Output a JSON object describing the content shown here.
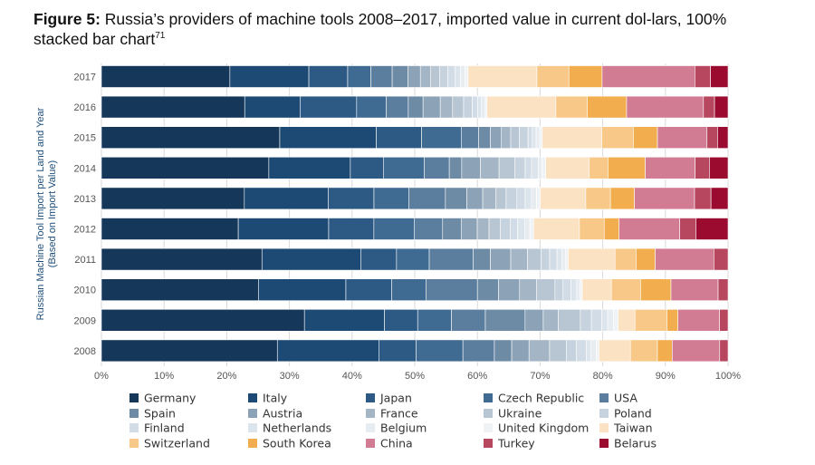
{
  "caption": {
    "figure_label": "Figure 5:",
    "text": " Russia’s providers of machine tools 2008–2017, imported value in current dol-lars, 100% stacked bar chart",
    "footnote": "71"
  },
  "chart_data": {
    "type": "bar",
    "orientation": "horizontal",
    "stacked": "100%",
    "title": "Russia’s providers of machine tools 2008–2017, imported value in current dollars, 100% stacked bar chart",
    "ylabel_line1": "Russian Machine Tool Import per Land and Year",
    "ylabel_line2": "(Based on Import Value)",
    "xlim": [
      0,
      100
    ],
    "x_ticks": [
      "0%",
      "10%",
      "20%",
      "30%",
      "40%",
      "50%",
      "60%",
      "70%",
      "80%",
      "90%",
      "100%"
    ],
    "categories": [
      "2017",
      "2016",
      "2015",
      "2014",
      "2013",
      "2012",
      "2011",
      "2010",
      "2009",
      "2008"
    ],
    "series": [
      {
        "name": "Germany",
        "color": "#15375a",
        "values": [
          20.5,
          23.3,
          28.8,
          26.9,
          22.6,
          22.1,
          26.0,
          25.3,
          31.2,
          27.4
        ]
      },
      {
        "name": "Italy",
        "color": "#1d4a75",
        "values": [
          12.6,
          9.0,
          15.6,
          13.1,
          13.3,
          14.6,
          16.0,
          14.1,
          12.3,
          15.8
        ]
      },
      {
        "name": "Japan",
        "color": "#2c5a85",
        "values": [
          6.2,
          9.2,
          7.3,
          5.3,
          7.2,
          7.3,
          5.8,
          7.4,
          5.1,
          5.8
        ]
      },
      {
        "name": "Czech Republic",
        "color": "#3f6b92",
        "values": [
          3.7,
          4.8,
          6.4,
          6.6,
          5.5,
          6.5,
          5.3,
          5.5,
          5.2,
          7.3
        ]
      },
      {
        "name": "USA",
        "color": "#5b7e9f",
        "values": [
          3.4,
          3.6,
          2.8,
          4.0,
          5.8,
          4.6,
          7.1,
          8.3,
          5.2,
          4.9
        ]
      },
      {
        "name": "Spain",
        "color": "#6e8ba6",
        "values": [
          2.5,
          2.4,
          1.9,
          2.0,
          3.4,
          3.0,
          2.8,
          3.4,
          6.1,
          2.7
        ]
      },
      {
        "name": "Austria",
        "color": "#8ba2b7",
        "values": [
          2.0,
          2.8,
          1.8,
          3.0,
          2.5,
          2.6,
          3.3,
          3.4,
          2.8,
          2.7
        ]
      },
      {
        "name": "France",
        "color": "#a4b5c5",
        "values": [
          1.6,
          2.0,
          1.5,
          3.0,
          2.1,
          1.9,
          2.7,
          2.7,
          2.3,
          3.2
        ]
      },
      {
        "name": "Ukraine",
        "color": "#b8c6d3",
        "values": [
          1.5,
          1.8,
          1.4,
          2.5,
          1.6,
          1.8,
          2.2,
          3.0,
          3.4,
          2.6
        ]
      },
      {
        "name": "Poland",
        "color": "#c6d2dd",
        "values": [
          1.3,
          1.4,
          1.4,
          1.7,
          1.7,
          1.6,
          1.4,
          1.3,
          1.7,
          1.6
        ]
      },
      {
        "name": "Finland",
        "color": "#d2dce6",
        "values": [
          1.1,
          0.9,
          0.7,
          1.0,
          1.3,
          1.2,
          1.2,
          1.3,
          1.6,
          1.5
        ]
      },
      {
        "name": "Netherlands",
        "color": "#dde5ec",
        "values": [
          0.9,
          0.6,
          0.6,
          1.1,
          1.0,
          1.2,
          0.8,
          0.9,
          0.9,
          0.7
        ]
      },
      {
        "name": "Belgium",
        "color": "#e7ecf1",
        "values": [
          0.7,
          0.6,
          0.6,
          0.6,
          0.8,
          0.8,
          0.6,
          0.5,
          0.9,
          0.9
        ]
      },
      {
        "name": "United Kingdom",
        "color": "#f0f3f6",
        "values": [
          0.5,
          0.3,
          0.4,
          0.6,
          0.6,
          0.6,
          0.4,
          0.4,
          0.7,
          0.4
        ]
      },
      {
        "name": "Taiwan",
        "color": "#fbe2c3",
        "values": [
          11.0,
          11.2,
          9.6,
          7.0,
          7.2,
          7.4,
          7.6,
          4.7,
          2.6,
          4.9
        ]
      },
      {
        "name": "Switzerland",
        "color": "#f8c888",
        "values": [
          5.1,
          5.1,
          5.1,
          3.0,
          3.9,
          4.0,
          3.4,
          4.7,
          4.9,
          4.2
        ]
      },
      {
        "name": "South Korea",
        "color": "#f2ae4e",
        "values": [
          5.3,
          6.4,
          3.9,
          6.0,
          3.8,
          2.4,
          3.1,
          4.9,
          1.7,
          2.3
        ]
      },
      {
        "name": "China",
        "color": "#d27c94",
        "values": [
          14.8,
          12.5,
          8.0,
          8.0,
          9.5,
          9.8,
          9.5,
          7.6,
          6.4,
          7.4
        ]
      },
      {
        "name": "Turkey",
        "color": "#b7475f",
        "values": [
          2.5,
          1.8,
          1.7,
          2.3,
          2.6,
          2.6,
          2.3,
          1.6,
          1.3,
          1.3
        ]
      },
      {
        "name": "Belarus",
        "color": "#9b0b2f",
        "values": [
          2.8,
          2.2,
          1.7,
          3.0,
          2.7,
          5.2,
          0.0,
          0.0,
          0.0,
          0.0
        ]
      }
    ],
    "legend_position": "bottom",
    "grid": "vertical"
  }
}
